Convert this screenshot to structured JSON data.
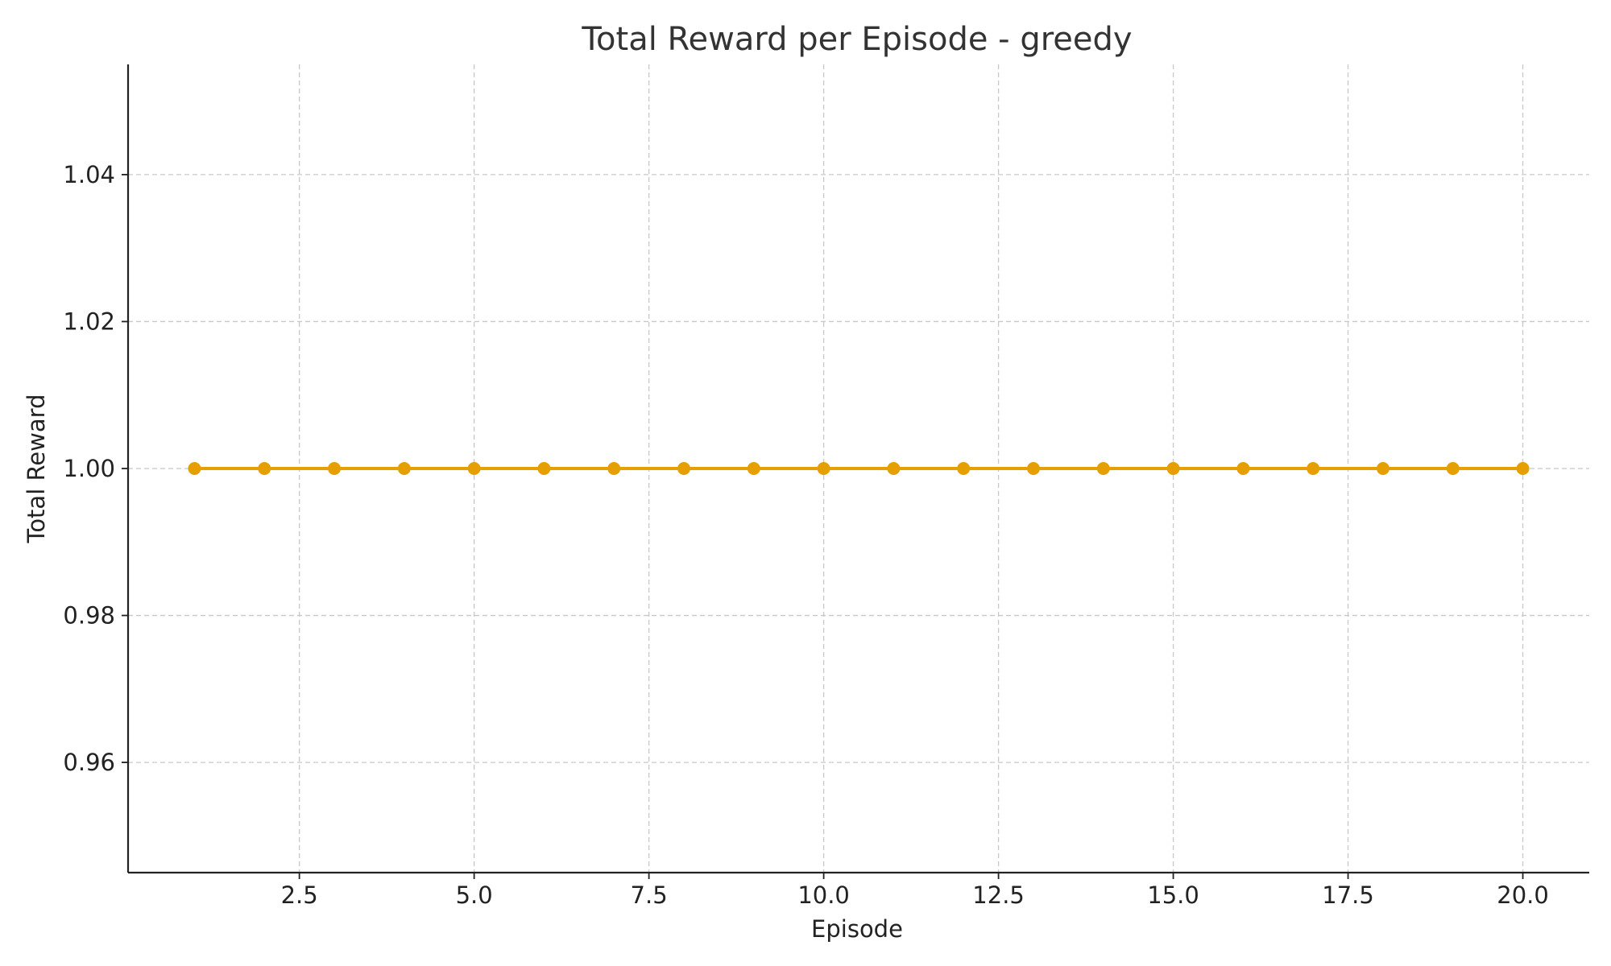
{
  "chart_data": {
    "type": "line",
    "title": "Total Reward per Episode - greedy",
    "xlabel": "Episode",
    "ylabel": "Total Reward",
    "xlim": [
      0.05,
      20.95
    ],
    "ylim": [
      0.945,
      1.055
    ],
    "xticks": [
      2.5,
      5.0,
      7.5,
      10.0,
      12.5,
      15.0,
      17.5,
      20.0
    ],
    "xtick_labels": [
      "2.5",
      "5.0",
      "7.5",
      "10.0",
      "12.5",
      "15.0",
      "17.5",
      "20.0"
    ],
    "yticks": [
      0.96,
      0.98,
      1.0,
      1.02,
      1.04
    ],
    "ytick_labels": [
      "0.96",
      "0.98",
      "1.00",
      "1.02",
      "1.04"
    ],
    "grid": true,
    "legend": "none",
    "series": [
      {
        "color": "#E69F00",
        "marker": "circle",
        "x": [
          1,
          2,
          3,
          4,
          5,
          6,
          7,
          8,
          9,
          10,
          11,
          12,
          13,
          14,
          15,
          16,
          17,
          18,
          19,
          20
        ],
        "y": [
          1,
          1,
          1,
          1,
          1,
          1,
          1,
          1,
          1,
          1,
          1,
          1,
          1,
          1,
          1,
          1,
          1,
          1,
          1,
          1
        ]
      }
    ]
  }
}
